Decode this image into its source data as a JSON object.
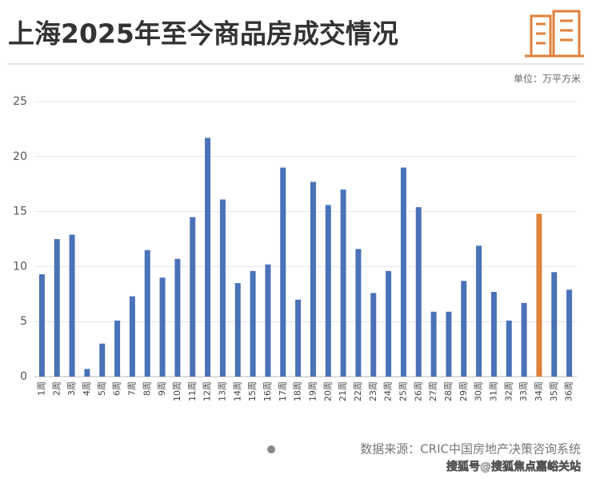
{
  "chart_data": {
    "type": "bar",
    "title": "上海2025年至今商品房成交情况",
    "unit": "单位：万平方米",
    "source": "数据来源：CRIC中国房地产决策咨询系统",
    "watermark": "搜狐号@搜狐焦点嘉峪关站",
    "categories": [
      "1周",
      "2周",
      "3周",
      "4周",
      "5周",
      "6周",
      "7周",
      "8周",
      "9周",
      "10周",
      "11周",
      "12周",
      "13周",
      "14周",
      "15周",
      "16周",
      "17周",
      "18周",
      "19周",
      "20周",
      "21周",
      "22周",
      "23周",
      "24周",
      "25周",
      "26周",
      "27周",
      "28周",
      "29周",
      "30周",
      "31周",
      "32周",
      "33周",
      "34周",
      "35周",
      "36周"
    ],
    "values": [
      9.3,
      12.5,
      12.9,
      0.7,
      3.0,
      5.1,
      7.3,
      11.5,
      9.0,
      10.7,
      14.5,
      21.7,
      16.1,
      8.5,
      9.6,
      10.2,
      19.0,
      7.0,
      17.7,
      15.6,
      17.0,
      11.6,
      7.6,
      9.6,
      19.0,
      15.4,
      5.9,
      5.9,
      8.7,
      11.9,
      7.7,
      5.1,
      6.7,
      14.8,
      9.5,
      7.9
    ],
    "colors": [
      "#4a72b8",
      "#4a72b8",
      "#4a72b8",
      "#4a72b8",
      "#4a72b8",
      "#4a72b8",
      "#4a72b8",
      "#4a72b8",
      "#4a72b8",
      "#4a72b8",
      "#4a72b8",
      "#4a72b8",
      "#4a72b8",
      "#4a72b8",
      "#4a72b8",
      "#4a72b8",
      "#4a72b8",
      "#4a72b8",
      "#4a72b8",
      "#4a72b8",
      "#4a72b8",
      "#4a72b8",
      "#4a72b8",
      "#4a72b8",
      "#4a72b8",
      "#4a72b8",
      "#4a72b8",
      "#4a72b8",
      "#4a72b8",
      "#4a72b8",
      "#4a72b8",
      "#4a72b8",
      "#4a72b8",
      "#e0823a",
      "#4a72b8",
      "#4a72b8"
    ],
    "ylim": [
      0,
      25
    ],
    "yticks": [
      0,
      5,
      10,
      15,
      20,
      25
    ],
    "grid": true
  }
}
